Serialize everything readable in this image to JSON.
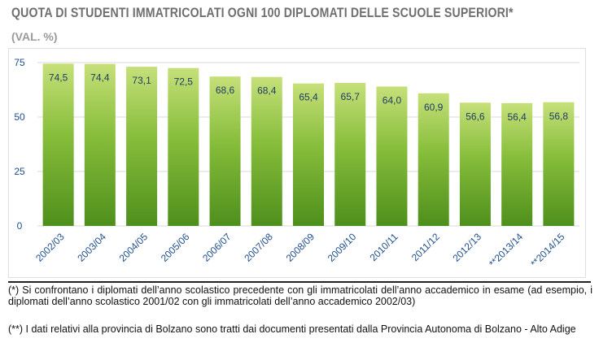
{
  "header": {
    "title": "QUOTA DI STUDENTI IMMATRICOLATI OGNI 100 DIPLOMATI DELLE SCUOLE SUPERIORI*",
    "subtitle": "(VAL. %)"
  },
  "chart_data": {
    "type": "bar",
    "categories": [
      "2002/03",
      "2003/04",
      "2004/05",
      "2005/06",
      "2006/07",
      "2007/08",
      "2008/09",
      "2009/10",
      "2010/11",
      "2011/12",
      "2012/13",
      "**2013/14",
      "**2014/15"
    ],
    "values": [
      74.5,
      74.4,
      73.1,
      72.5,
      68.6,
      68.4,
      65.4,
      65.7,
      64.0,
      60.9,
      56.6,
      56.4,
      56.8
    ],
    "value_labels": [
      "74,5",
      "74,4",
      "73,1",
      "72,5",
      "68,6",
      "68,4",
      "65,4",
      "65,7",
      "64,0",
      "60,9",
      "56,6",
      "56,4",
      "56,8"
    ],
    "yticks": [
      0,
      25,
      50,
      75
    ],
    "ylim": [
      0,
      75
    ],
    "title": "QUOTA DI STUDENTI IMMATRICOLATI OGNI 100 DIPLOMATI DELLE SCUOLE SUPERIORI*",
    "xlabel": "",
    "ylabel": "",
    "grid": true,
    "colors": {
      "bar_top": "#c6e07a",
      "bar_mid": "#86bd3a",
      "bar_bottom": "#4e8f1c",
      "axis_text": "#1f4e8c",
      "label_text": "#1f3d66",
      "grid": "#d9d9d9"
    }
  },
  "notes": {
    "note1": "(*) Si confrontano i diplomati dell’anno scolastico precedente con gli immatricolati dell’anno accademico in esame (ad esempio, i diplomati dell’anno scolastico 2001/02 con gli immatricolati dell’anno accademico 2002/03)",
    "note2": "(**) I dati relativi alla provincia di Bolzano sono tratti dai documenti presentati dalla Provincia Autonoma di Bolzano - Alto Adige"
  }
}
